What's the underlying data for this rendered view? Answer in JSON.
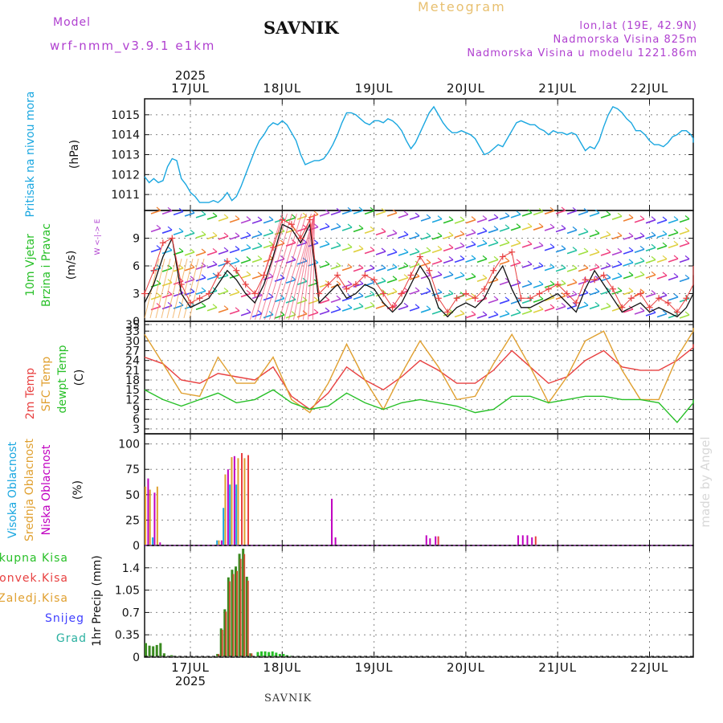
{
  "header": {
    "model_label": "Model",
    "model_run": "wrf-nmm_v3.9.1 e1km",
    "station": "SAVNIK",
    "title": "Meteogram",
    "lonlat": "lon,lat (19E, 42.9N)",
    "elevation": "Nadmorska Visina 825m",
    "model_elevation": "Nadmorska Visina u modelu 1221.86m"
  },
  "footer_station": "SAVNIK",
  "watermark": "made by Angel",
  "compass_label": "W <-|-> E",
  "colors": {
    "cyan": "#1aa7e0",
    "magenta": "#c000c0",
    "green": "#28c028",
    "red": "#e84040",
    "orange": "#e0a030",
    "yellow": "#e8c070",
    "blue": "#4040ff",
    "teal": "#2ab0a0",
    "purple": "#b040d0"
  },
  "chart_data": [
    {
      "id": "pressure",
      "type": "line",
      "ylabel": [
        "Pritisak na nivou mora",
        "(hPa)"
      ],
      "yticks": [
        1011,
        1012,
        1013,
        1014,
        1015
      ],
      "ylim": [
        1010.2,
        1015.8
      ],
      "grid": true,
      "x_days": [
        "17JUL",
        "18JUL",
        "19JUL",
        "20JUL",
        "21JUL",
        "22JUL"
      ],
      "year": "2025",
      "series": [
        {
          "color": "#1aa7e0",
          "x": [
            0.0,
            0.05,
            0.1,
            0.15,
            0.2,
            0.25,
            0.3,
            0.35,
            0.4,
            0.45,
            0.5,
            0.55,
            0.6,
            0.65,
            0.7,
            0.75,
            0.8,
            0.85,
            0.9,
            0.95,
            1.0,
            1.05,
            1.1,
            1.15,
            1.2,
            1.25,
            1.3,
            1.35,
            1.4,
            1.45,
            1.5,
            1.55,
            1.6,
            1.65,
            1.7,
            1.75,
            1.8,
            1.85,
            1.9,
            1.95,
            2.0,
            2.05,
            2.1,
            2.15,
            2.2,
            2.25,
            2.3,
            2.35,
            2.4,
            2.45,
            2.5,
            2.55,
            2.6,
            2.65,
            2.7,
            2.75,
            2.8,
            2.85,
            2.9,
            2.95,
            3.0,
            3.05,
            3.1,
            3.15,
            3.2,
            3.25,
            3.3,
            3.35,
            3.4,
            3.45,
            3.5,
            3.55,
            3.6,
            3.65,
            3.7,
            3.75,
            3.8,
            3.85,
            3.9,
            3.95,
            4.0,
            4.05,
            4.1,
            4.15,
            4.2,
            4.25,
            4.3,
            4.35,
            4.4,
            4.45,
            4.5,
            4.55,
            4.6,
            4.65,
            4.7,
            4.75,
            4.8,
            4.85,
            4.9,
            4.95,
            5.0,
            5.05,
            5.1,
            5.15,
            5.2,
            5.25,
            5.3,
            5.35,
            5.4,
            5.45,
            5.5,
            5.55,
            5.6,
            5.65,
            5.7,
            5.75,
            5.8,
            5.85,
            5.9,
            5.95,
            6.0,
            6.05,
            6.1,
            6.15
          ],
          "y": [
            1011.9,
            1011.6,
            1011.8,
            1011.6,
            1011.7,
            1012.4,
            1012.8,
            1012.7,
            1011.8,
            1011.5,
            1011.1,
            1010.9,
            1010.6,
            1010.6,
            1010.6,
            1010.7,
            1010.6,
            1010.8,
            1011.1,
            1010.7,
            1010.9,
            1011.4,
            1012.0,
            1012.6,
            1013.2,
            1013.7,
            1014.0,
            1014.4,
            1014.6,
            1014.5,
            1014.7,
            1014.5,
            1014.1,
            1013.7,
            1013.0,
            1012.5,
            1012.6,
            1012.7,
            1012.7,
            1012.8,
            1013.1,
            1013.5,
            1014.0,
            1014.6,
            1015.1,
            1015.1,
            1015.0,
            1014.8,
            1014.6,
            1014.5,
            1014.7,
            1014.7,
            1014.6,
            1014.8,
            1014.7,
            1014.5,
            1014.2,
            1013.7,
            1013.3,
            1013.6,
            1014.1,
            1014.6,
            1015.1,
            1015.4,
            1015.0,
            1014.6,
            1014.3,
            1014.1,
            1014.1,
            1014.2,
            1014.1,
            1014.0,
            1013.8,
            1013.4,
            1013.0,
            1013.1,
            1013.3,
            1013.5,
            1013.4,
            1013.8,
            1014.2,
            1014.6,
            1014.7,
            1014.6,
            1014.5,
            1014.5,
            1014.3,
            1014.2,
            1014.0,
            1014.2,
            1014.1,
            1014.1,
            1014.0,
            1014.1,
            1014.0,
            1013.6,
            1013.2,
            1013.4,
            1013.3,
            1013.7,
            1014.4,
            1015.0,
            1015.4,
            1015.3,
            1015.1,
            1014.8,
            1014.6,
            1014.2,
            1014.2,
            1014.0,
            1013.7,
            1013.5,
            1013.5,
            1013.4,
            1013.6,
            1013.9,
            1014.0,
            1014.2,
            1014.2,
            1014.0,
            1013.8,
            1013.6,
            1013.6,
            1013.6
          ]
        }
      ]
    },
    {
      "id": "wind",
      "type": "line",
      "ylabel": [
        "10m Vjetar",
        "Brzina i Pravac",
        "(m/s)"
      ],
      "yticks": [
        0,
        3,
        6,
        9
      ],
      "ylim": [
        0,
        12
      ],
      "grid": true,
      "series": [
        {
          "name": "speed",
          "color": "#111111",
          "x": [
            0.0,
            0.1,
            0.2,
            0.3,
            0.4,
            0.5,
            0.6,
            0.7,
            0.8,
            0.9,
            1.0,
            1.1,
            1.2,
            1.3,
            1.4,
            1.5,
            1.6,
            1.7,
            1.8,
            1.9,
            2.0,
            2.1,
            2.2,
            2.3,
            2.4,
            2.5,
            2.6,
            2.7,
            2.8,
            2.9,
            3.0,
            3.1,
            3.2,
            3.3,
            3.4,
            3.5,
            3.6,
            3.7,
            3.8,
            3.9,
            4.0,
            4.1,
            4.2,
            4.3,
            4.4,
            4.5,
            4.6,
            4.7,
            4.8,
            4.9,
            5.0,
            5.1,
            5.2,
            5.3,
            5.4,
            5.5,
            5.6,
            5.7,
            5.8,
            5.9,
            6.0,
            6.1
          ],
          "y": [
            2,
            4,
            7,
            9,
            3,
            1.5,
            2,
            2.5,
            4,
            5.5,
            4.5,
            3,
            2,
            4,
            7,
            10.5,
            10,
            8.5,
            10.5,
            2,
            3,
            4,
            2.5,
            3,
            4,
            3.5,
            2,
            1,
            2,
            4,
            6,
            4.5,
            1.5,
            0.5,
            1.5,
            2,
            1.5,
            2.5,
            4.5,
            6,
            3.5,
            1.5,
            1.5,
            2,
            2.5,
            3,
            2,
            1,
            3.5,
            5.5,
            4,
            2.5,
            1,
            1.5,
            2,
            1,
            1.5,
            1,
            0.5,
            1.5,
            3,
            5
          ]
        },
        {
          "name": "gusts",
          "color": "#e84040",
          "x": [
            0.0,
            0.1,
            0.2,
            0.3,
            0.4,
            0.5,
            0.6,
            0.7,
            0.8,
            0.9,
            1.0,
            1.1,
            1.2,
            1.3,
            1.4,
            1.5,
            1.6,
            1.7,
            1.8,
            1.9,
            2.0,
            2.1,
            2.2,
            2.3,
            2.4,
            2.5,
            2.6,
            2.7,
            2.8,
            2.9,
            3.0,
            3.1,
            3.2,
            3.3,
            3.4,
            3.5,
            3.6,
            3.7,
            3.8,
            3.9,
            4.0,
            4.1,
            4.2,
            4.3,
            4.4,
            4.5,
            4.6,
            4.7,
            4.8,
            4.9,
            5.0,
            5.1,
            5.2,
            5.3,
            5.4,
            5.5,
            5.6,
            5.7,
            5.8,
            5.9,
            6.0,
            6.1
          ],
          "y": [
            3,
            5.5,
            8.5,
            9,
            4,
            2,
            2.5,
            3,
            5,
            6.5,
            5.5,
            4,
            3,
            5,
            8,
            11,
            10.5,
            9,
            11,
            3,
            4,
            5,
            3.5,
            4,
            5,
            4.5,
            3,
            1.5,
            3,
            5,
            7,
            5.5,
            2.5,
            1,
            2.5,
            3,
            2.5,
            3.5,
            5.5,
            7,
            7.5,
            2.5,
            2.5,
            3,
            3.5,
            4,
            3,
            2,
            4.5,
            4.5,
            5,
            3.5,
            1.5,
            2.5,
            3,
            1.5,
            2.5,
            2,
            1,
            2.5,
            4,
            6
          ]
        }
      ]
    },
    {
      "id": "temperature",
      "type": "line",
      "ylabel": [
        "2m Temp",
        "SFC Temp",
        "dewpt Temp",
        "(C)"
      ],
      "yticks": [
        3,
        6,
        9,
        12,
        15,
        18,
        21,
        24,
        27,
        30,
        33,
        35
      ],
      "ylim": [
        1.5,
        36
      ],
      "grid": true,
      "series": [
        {
          "name": "2m Temp",
          "color": "#e84040",
          "x": [
            0.0,
            0.2,
            0.4,
            0.6,
            0.8,
            1.0,
            1.2,
            1.4,
            1.6,
            1.8,
            2.0,
            2.2,
            2.4,
            2.6,
            2.8,
            3.0,
            3.2,
            3.4,
            3.6,
            3.8,
            4.0,
            4.2,
            4.4,
            4.6,
            4.8,
            5.0,
            5.2,
            5.4,
            5.6,
            5.8,
            6.0,
            6.15
          ],
          "y": [
            25,
            23,
            18,
            17,
            20,
            19,
            18,
            22,
            13,
            9,
            14,
            22,
            18,
            15,
            19,
            24,
            21,
            17,
            17,
            21,
            27,
            22,
            17,
            19,
            24,
            27,
            22,
            21,
            21,
            24,
            28,
            29
          ]
        },
        {
          "name": "SFC Temp",
          "color": "#e0a030",
          "x": [
            0.0,
            0.2,
            0.4,
            0.6,
            0.8,
            1.0,
            1.2,
            1.4,
            1.6,
            1.8,
            2.0,
            2.2,
            2.4,
            2.6,
            2.8,
            3.0,
            3.2,
            3.4,
            3.6,
            3.8,
            4.0,
            4.2,
            4.4,
            4.6,
            4.8,
            5.0,
            5.2,
            5.4,
            5.6,
            5.8,
            6.0,
            6.15
          ],
          "y": [
            32,
            23,
            14,
            13,
            25,
            17,
            17,
            25,
            12,
            8,
            17,
            29,
            18,
            9,
            20,
            30,
            22,
            12,
            13,
            23,
            32,
            22,
            11,
            19,
            30,
            33,
            21,
            12,
            12,
            25,
            33,
            34
          ]
        },
        {
          "name": "dewpt Temp",
          "color": "#28c028",
          "x": [
            0.0,
            0.2,
            0.4,
            0.6,
            0.8,
            1.0,
            1.2,
            1.4,
            1.6,
            1.8,
            2.0,
            2.2,
            2.4,
            2.6,
            2.8,
            3.0,
            3.2,
            3.4,
            3.6,
            3.8,
            4.0,
            4.2,
            4.4,
            4.6,
            4.8,
            5.0,
            5.2,
            5.4,
            5.6,
            5.8,
            6.0,
            6.15
          ],
          "y": [
            15,
            12,
            10,
            12,
            14,
            11,
            12,
            15,
            11,
            9,
            10,
            14,
            11,
            9,
            11,
            12,
            11,
            10,
            8,
            9,
            13,
            13,
            11,
            12,
            13,
            13,
            12,
            12,
            11,
            5,
            11,
            12
          ]
        }
      ]
    },
    {
      "id": "cloud",
      "type": "bar",
      "ylabel": [
        "Visoka Oblacnost",
        "Srednja Oblacnost",
        "Niska Oblacnost",
        "(%)"
      ],
      "yticks": [
        0,
        25,
        50,
        75,
        100
      ],
      "ylim": [
        0,
        110
      ],
      "grid": true,
      "series": [
        {
          "name": "Visoka Oblacnost",
          "color": "#1aa7e0",
          "x": [
            0.08,
            0.78,
            0.85,
            0.92,
            0.99
          ],
          "y": [
            8,
            5,
            37,
            60,
            60
          ]
        },
        {
          "name": "Srednja Oblacnost",
          "color": "#e0a030",
          "x": [
            0.0,
            0.05,
            0.13,
            0.8,
            0.87,
            0.94,
            1.01,
            1.08
          ],
          "y": [
            58,
            55,
            58,
            5,
            70,
            87,
            86,
            86
          ]
        },
        {
          "name": "Niska Oblacnost",
          "color": "#c000c0",
          "x": [
            0.03,
            0.1,
            0.16,
            0.83,
            0.9,
            0.97,
            2.03,
            2.07,
            3.06,
            3.1,
            3.16,
            4.06,
            4.11,
            4.16,
            4.21
          ],
          "y": [
            66,
            52,
            3,
            5,
            75,
            88,
            46,
            8,
            10,
            7,
            9,
            10,
            10,
            10,
            8
          ]
        },
        {
          "name": "red",
          "color": "#e84040",
          "x": [
            1.05,
            1.12,
            3.19,
            4.25
          ],
          "y": [
            91,
            89,
            9,
            9
          ]
        }
      ]
    },
    {
      "id": "precip",
      "type": "bar",
      "ylabel": [
        "1hr Precip (mm)"
      ],
      "yticks": [
        0,
        0.35,
        0.7,
        1.05,
        1.4
      ],
      "ylim": [
        0,
        1.75
      ],
      "grid": true,
      "legend": [
        "Ukupna Kisa",
        "Konvek.Kisa",
        "Zaledj.Kisa",
        "Snijeg",
        "Grad"
      ],
      "legend_colors": [
        "#28c028",
        "#e84040",
        "#e0a030",
        "#4040ff",
        "#2ab0a0"
      ],
      "series": [
        {
          "name": "Ukupna Kisa",
          "color": "#3a8a20",
          "x": [
            0.0,
            0.04,
            0.08,
            0.12,
            0.16,
            0.2,
            0.24,
            0.28,
            0.32,
            0.36,
            0.78,
            0.82,
            0.86,
            0.9,
            0.94,
            0.98,
            1.02,
            1.06,
            1.1,
            1.14,
            1.22,
            1.26,
            1.3,
            1.34,
            1.38,
            1.42,
            1.46,
            1.5,
            1.54,
            1.58,
            1.62,
            1.66,
            1.7,
            1.74
          ],
          "y": [
            0.22,
            0.18,
            0.17,
            0.19,
            0.22,
            0.06,
            0.02,
            0.03,
            0.02,
            0.01,
            0.05,
            0.45,
            0.75,
            1.25,
            1.37,
            1.42,
            1.62,
            1.7,
            1.26,
            0.06,
            0.08,
            0.09,
            0.09,
            0.08,
            0.09,
            0.07,
            0.05,
            0.05,
            0.03,
            0.02,
            0.01,
            0.01,
            0.01,
            0.01
          ]
        }
      ]
    }
  ]
}
